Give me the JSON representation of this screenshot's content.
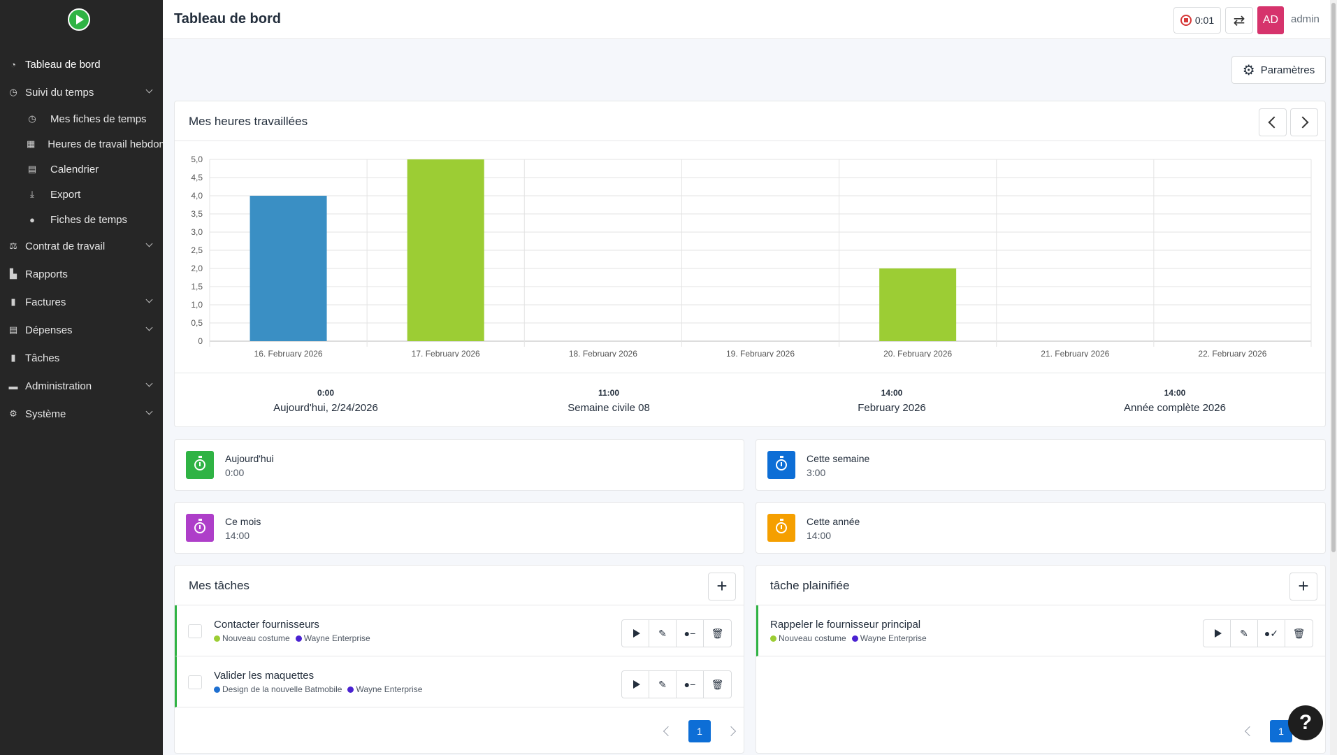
{
  "header": {
    "title": "Tableau de bord",
    "timer": "0:01",
    "avatar_initials": "AD",
    "username": "admin"
  },
  "sidebar": {
    "items": [
      {
        "label": "Tableau de bord",
        "icon": "dashboard-icon"
      },
      {
        "label": "Suivi du temps",
        "icon": "clock-icon"
      },
      {
        "label": "Contrat de travail",
        "icon": "scale-icon"
      },
      {
        "label": "Rapports",
        "icon": "chart-icon"
      },
      {
        "label": "Factures",
        "icon": "invoice-icon"
      },
      {
        "label": "Dépenses",
        "icon": "expense-icon"
      },
      {
        "label": "Tâches",
        "icon": "clipboard-icon"
      },
      {
        "label": "Administration",
        "icon": "toolbox-icon"
      },
      {
        "label": "Système",
        "icon": "gear-icon"
      }
    ],
    "subitems": [
      {
        "label": "Mes fiches de temps",
        "icon": "clock-icon"
      },
      {
        "label": "Heures de travail hebdomadaires",
        "icon": "table-icon"
      },
      {
        "label": "Calendrier",
        "icon": "calendar-icon"
      },
      {
        "label": "Export",
        "icon": "download-icon"
      },
      {
        "label": "Fiches de temps",
        "icon": "user-clock-icon"
      }
    ]
  },
  "params_label": "Paramètres",
  "chart_card": {
    "title": "Mes heures travaillées"
  },
  "chart_data": {
    "type": "bar",
    "categories": [
      "16. February 2026",
      "17. February 2026",
      "18. February 2026",
      "19. February 2026",
      "20. February 2026",
      "21. February 2026",
      "22. February 2026"
    ],
    "values": [
      4.0,
      5.0,
      0,
      0,
      2.0,
      0,
      0
    ],
    "colors": [
      "#3a8fc4",
      "#9ccd34",
      "#9ccd34",
      "#9ccd34",
      "#9ccd34",
      "#9ccd34",
      "#9ccd34"
    ],
    "ylim": [
      0,
      5
    ],
    "yticks": [
      "0",
      "0,5",
      "1,0",
      "1,5",
      "2,0",
      "2,5",
      "3,0",
      "3,5",
      "4,0",
      "4,5",
      "5,0"
    ],
    "grid": true
  },
  "stats": [
    {
      "value": "0:00",
      "label": "Aujourd'hui, 2/24/2026"
    },
    {
      "value": "11:00",
      "label": "Semaine civile 08"
    },
    {
      "value": "14:00",
      "label": "February 2026"
    },
    {
      "value": "14:00",
      "label": "Année complète 2026"
    }
  ],
  "summary": [
    {
      "title": "Aujourd'hui",
      "value": "0:00",
      "color": "#2fb344"
    },
    {
      "title": "Cette semaine",
      "value": "3:00",
      "color": "#0d6ed6"
    },
    {
      "title": "Ce mois",
      "value": "14:00",
      "color": "#ae3ec9"
    },
    {
      "title": "Cette année",
      "value": "14:00",
      "color": "#f59f00"
    }
  ],
  "my_tasks": {
    "title": "Mes tâches",
    "page": "1",
    "rows": [
      {
        "title": "Contacter fournisseurs",
        "project": "Nouveau costume",
        "project_color": "#9ccd34",
        "customer": "Wayne Enterprise",
        "customer_color": "#4a22d1"
      },
      {
        "title": "Valider les maquettes",
        "project": "Design de la nouvelle Batmobile",
        "project_color": "#1e6fd0",
        "customer": "Wayne Enterprise",
        "customer_color": "#4a22d1"
      }
    ]
  },
  "planned_tasks": {
    "title": "tâche plainifiée",
    "page": "1",
    "rows": [
      {
        "title": "Rappeler le fournisseur principal",
        "project": "Nouveau costume",
        "project_color": "#9ccd34",
        "customer": "Wayne Enterprise",
        "customer_color": "#4a22d1"
      }
    ]
  },
  "help_label": "?"
}
